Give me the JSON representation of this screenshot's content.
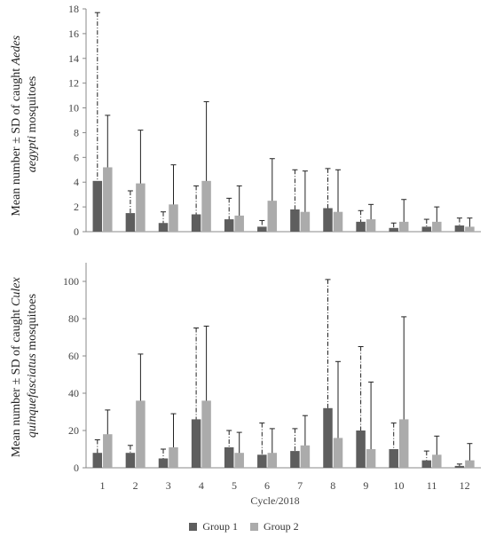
{
  "chart_data": [
    {
      "type": "bar",
      "ylabel_parts": [
        "Mean number ± SD of caught ",
        "Aedes",
        "aegypti",
        " mosquitoes"
      ],
      "ylim": [
        0,
        18
      ],
      "yticks": [
        0,
        2,
        4,
        6,
        8,
        10,
        12,
        14,
        16,
        18
      ],
      "categories": [
        "1",
        "2",
        "3",
        "4",
        "5",
        "6",
        "7",
        "8",
        "9",
        "10",
        "11",
        "12"
      ],
      "series": [
        {
          "name": "Group 1",
          "color": "#5e5e5e",
          "error_style": "dash-dot",
          "values": [
            4.1,
            1.5,
            0.7,
            1.4,
            1.0,
            0.4,
            1.8,
            1.9,
            0.8,
            0.3,
            0.4,
            0.5
          ],
          "sd": [
            13.6,
            1.8,
            0.9,
            2.3,
            1.7,
            0.5,
            3.2,
            3.2,
            0.9,
            0.4,
            0.6,
            0.6
          ]
        },
        {
          "name": "Group 2",
          "color": "#ababab",
          "error_style": "solid",
          "values": [
            5.2,
            3.9,
            2.2,
            4.1,
            1.3,
            2.5,
            1.6,
            1.6,
            1.0,
            0.8,
            0.8,
            0.4
          ],
          "sd": [
            4.2,
            4.3,
            3.2,
            6.4,
            2.4,
            3.4,
            3.3,
            3.4,
            1.2,
            1.8,
            1.2,
            0.7
          ]
        }
      ]
    },
    {
      "type": "bar",
      "ylabel_parts": [
        "Mean number ± SD of caught ",
        "Culex",
        "quinquefasciatus",
        " mosquitoes"
      ],
      "ylim": [
        0,
        110
      ],
      "yticks": [
        0,
        20,
        40,
        60,
        80,
        100
      ],
      "categories": [
        "1",
        "2",
        "3",
        "4",
        "5",
        "6",
        "7",
        "8",
        "9",
        "10",
        "11",
        "12"
      ],
      "xlabel": "Cycle/2018",
      "series": [
        {
          "name": "Group 1",
          "color": "#5e5e5e",
          "error_style": "dash-dot",
          "values": [
            8,
            8,
            5,
            26,
            11,
            7,
            9,
            32,
            20,
            10,
            4,
            1
          ],
          "sd": [
            7,
            4,
            5,
            49,
            9,
            17,
            12,
            69,
            45,
            14,
            5,
            1
          ]
        },
        {
          "name": "Group 2",
          "color": "#ababab",
          "error_style": "solid",
          "values": [
            18,
            36,
            11,
            36,
            8,
            8,
            12,
            16,
            10,
            26,
            7,
            4
          ],
          "sd": [
            13,
            25,
            18,
            40,
            11,
            13,
            16,
            41,
            36,
            55,
            10,
            9
          ]
        }
      ]
    }
  ],
  "legend": [
    {
      "label": "Group 1",
      "color": "#5e5e5e"
    },
    {
      "label": "Group 2",
      "color": "#ababab"
    }
  ]
}
